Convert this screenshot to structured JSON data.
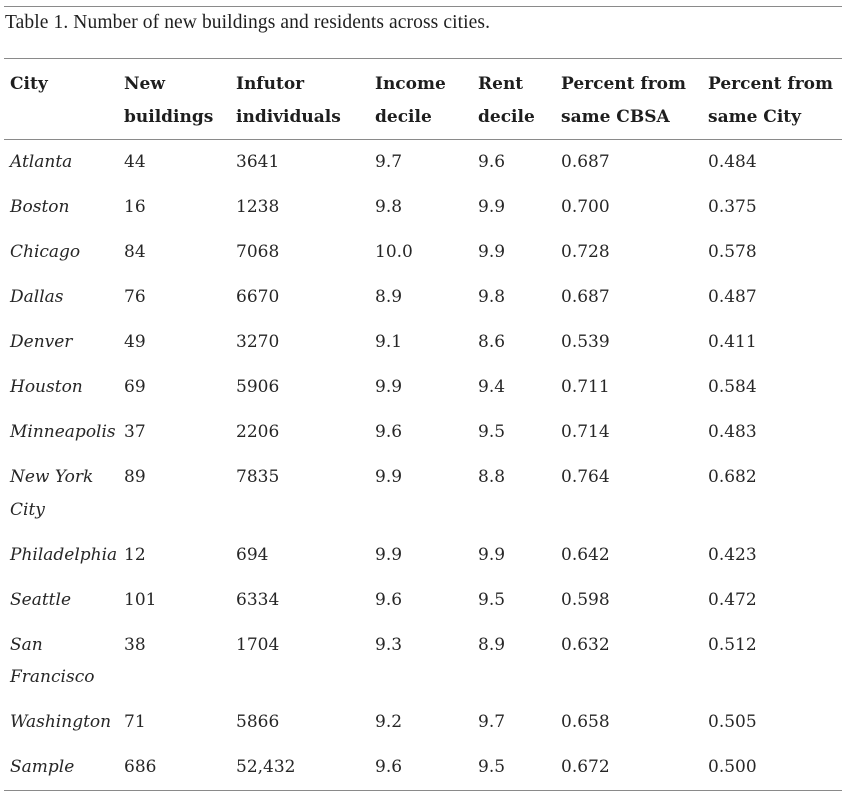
{
  "caption": "Table 1. Number of new buildings and residents across cities.",
  "table": {
    "headers": [
      "City",
      "New buildings",
      "Infutor individuals",
      "Income decile",
      "Rent decile",
      "Percent from same CBSA",
      "Percent from same City"
    ],
    "rows": [
      [
        "Atlanta",
        "44",
        "3641",
        "9.7",
        "9.6",
        "0.687",
        "0.484"
      ],
      [
        "Boston",
        "16",
        "1238",
        "9.8",
        "9.9",
        "0.700",
        "0.375"
      ],
      [
        "Chicago",
        "84",
        "7068",
        "10.0",
        "9.9",
        "0.728",
        "0.578"
      ],
      [
        "Dallas",
        "76",
        "6670",
        "8.9",
        "9.8",
        "0.687",
        "0.487"
      ],
      [
        "Denver",
        "49",
        "3270",
        "9.1",
        "8.6",
        "0.539",
        "0.411"
      ],
      [
        "Houston",
        "69",
        "5906",
        "9.9",
        "9.4",
        "0.711",
        "0.584"
      ],
      [
        "Minneapolis",
        "37",
        "2206",
        "9.6",
        "9.5",
        "0.714",
        "0.483"
      ],
      [
        "New York City",
        "89",
        "7835",
        "9.9",
        "8.8",
        "0.764",
        "0.682"
      ],
      [
        "Philadelphia",
        "12",
        "694",
        "9.9",
        "9.9",
        "0.642",
        "0.423"
      ],
      [
        "Seattle",
        "101",
        "6334",
        "9.6",
        "9.5",
        "0.598",
        "0.472"
      ],
      [
        "San Francisco",
        "38",
        "1704",
        "9.3",
        "8.9",
        "0.632",
        "0.512"
      ],
      [
        "Washington",
        "71",
        "5866",
        "9.2",
        "9.7",
        "0.658",
        "0.505"
      ],
      [
        "Sample",
        "686",
        "52,432",
        "9.6",
        "9.5",
        "0.672",
        "0.500"
      ]
    ]
  }
}
